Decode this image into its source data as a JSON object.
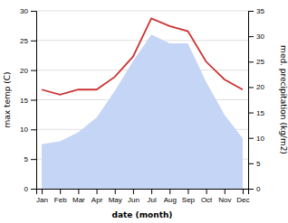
{
  "chart_data": {
    "type": "area",
    "xlabel": "date (month)",
    "ylabel": "max temp (C)",
    "y2label": "med. precipitation (kg/m2)",
    "categories": [
      "Jan",
      "Feb",
      "Mar",
      "Apr",
      "May",
      "Jun",
      "Jul",
      "Aug",
      "Sep",
      "Oct",
      "Nov",
      "Dec"
    ],
    "series": [
      {
        "type": "area",
        "color": "#c5d5f5",
        "values": [
          7.5,
          8.0,
          9.5,
          12.0,
          16.5,
          21.5,
          26.0,
          24.5,
          24.5,
          18.0,
          12.5,
          8.5
        ]
      },
      {
        "type": "line",
        "color": "#cc3333",
        "axis": "y2",
        "values": [
          19.5,
          18.5,
          19.5,
          19.5,
          22.0,
          26.0,
          33.5,
          32.0,
          31.0,
          25.0,
          21.5,
          19.5
        ]
      }
    ],
    "ylim": [
      0,
      30
    ],
    "yticks": [
      0,
      5,
      10,
      15,
      20,
      25,
      30
    ],
    "y2lim": [
      0,
      35
    ],
    "y2ticks": [
      0,
      5,
      10,
      15,
      20,
      25,
      30,
      35
    ],
    "grid": true
  }
}
